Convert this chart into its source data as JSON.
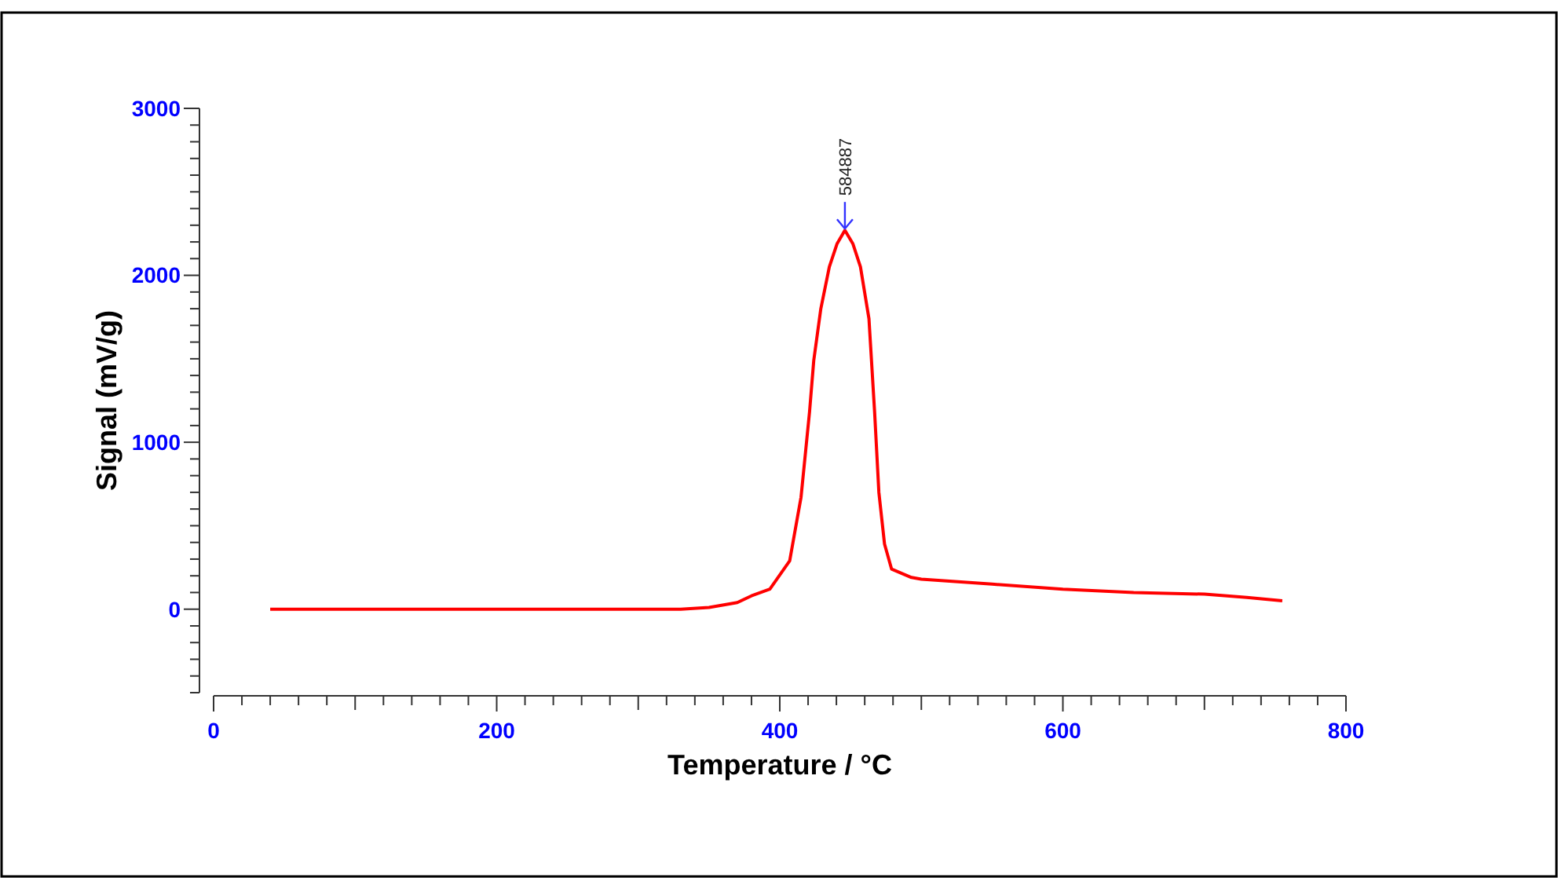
{
  "chart_data": {
    "type": "line",
    "xlabel": "Temperature / °C",
    "ylabel": "Signal (mV/g)",
    "xlim": [
      0,
      800
    ],
    "ylim": [
      -500,
      3000
    ],
    "xticks": [
      0,
      {
        "value": 20,
        "label": null
      },
      {
        "value": 40,
        "label": null
      },
      {
        "value": 60,
        "label": null
      },
      {
        "value": 80,
        "label": null
      },
      {
        "value": 100,
        "label": null
      },
      {
        "value": 120,
        "label": null
      },
      {
        "value": 140,
        "label": null
      },
      {
        "value": 160,
        "label": null
      },
      {
        "value": 180,
        "label": null
      },
      200,
      {
        "value": 220,
        "label": null
      },
      {
        "value": 240,
        "label": null
      },
      {
        "value": 260,
        "label": null
      },
      {
        "value": 280,
        "label": null
      },
      {
        "value": 300,
        "label": null
      },
      {
        "value": 320,
        "label": null
      },
      {
        "value": 340,
        "label": null
      },
      {
        "value": 360,
        "label": null
      },
      {
        "value": 380,
        "label": null
      },
      400,
      {
        "value": 420,
        "label": null
      },
      {
        "value": 440,
        "label": null
      },
      {
        "value": 460,
        "label": null
      },
      {
        "value": 480,
        "label": null
      },
      {
        "value": 500,
        "label": null
      },
      {
        "value": 520,
        "label": null
      },
      {
        "value": 540,
        "label": null
      },
      {
        "value": 560,
        "label": null
      },
      {
        "value": 580,
        "label": null
      },
      600,
      {
        "value": 620,
        "label": null
      },
      {
        "value": 640,
        "label": null
      },
      {
        "value": 660,
        "label": null
      },
      {
        "value": 680,
        "label": null
      },
      {
        "value": 700,
        "label": null
      },
      {
        "value": 720,
        "label": null
      },
      {
        "value": 740,
        "label": null
      },
      {
        "value": 760,
        "label": null
      },
      {
        "value": 780,
        "label": null
      },
      800
    ],
    "yticks": [
      {
        "value": -500,
        "label": null
      },
      {
        "value": -400,
        "label": null
      },
      {
        "value": -300,
        "label": null
      },
      {
        "value": -200,
        "label": null
      },
      {
        "value": -100,
        "label": null
      },
      0,
      {
        "value": 100,
        "label": null
      },
      {
        "value": 200,
        "label": null
      },
      {
        "value": 300,
        "label": null
      },
      {
        "value": 400,
        "label": null
      },
      {
        "value": 500,
        "label": null
      },
      {
        "value": 600,
        "label": null
      },
      {
        "value": 700,
        "label": null
      },
      {
        "value": 800,
        "label": null
      },
      {
        "value": 900,
        "label": null
      },
      1000,
      {
        "value": 1100,
        "label": null
      },
      {
        "value": 1200,
        "label": null
      },
      {
        "value": 1300,
        "label": null
      },
      {
        "value": 1400,
        "label": null
      },
      {
        "value": 1500,
        "label": null
      },
      {
        "value": 1600,
        "label": null
      },
      {
        "value": 1700,
        "label": null
      },
      {
        "value": 1800,
        "label": null
      },
      {
        "value": 1900,
        "label": null
      },
      2000,
      {
        "value": 2100,
        "label": null
      },
      {
        "value": 2200,
        "label": null
      },
      {
        "value": 2300,
        "label": null
      },
      {
        "value": 2400,
        "label": null
      },
      {
        "value": 2500,
        "label": null
      },
      {
        "value": 2600,
        "label": null
      },
      {
        "value": 2700,
        "label": null
      },
      {
        "value": 2800,
        "label": null
      },
      {
        "value": 2900,
        "label": null
      },
      3000
    ],
    "grid": false,
    "marker": "none",
    "line_style": "solid",
    "annotations": [
      {
        "text": "584887",
        "x": 446,
        "y": 2270
      }
    ],
    "series": [
      {
        "color": "#ff0000",
        "x": [
          40,
          80,
          120,
          160,
          200,
          250,
          300,
          330,
          350,
          370,
          380,
          393,
          407,
          415,
          421,
          424,
          429,
          435,
          440.5,
          446,
          451.6,
          457,
          463,
          467,
          470,
          474,
          479,
          493,
          500,
          550,
          600,
          650,
          700,
          730,
          755
        ],
        "values": [
          0,
          0,
          0,
          0,
          0,
          0,
          0,
          0,
          10,
          40,
          80,
          120,
          290,
          670,
          1180,
          1490,
          1800,
          2050,
          2190,
          2270,
          2190,
          2050,
          1740,
          1180,
          700,
          390,
          240,
          190,
          180,
          150,
          120,
          100,
          90,
          70,
          50
        ]
      }
    ]
  }
}
